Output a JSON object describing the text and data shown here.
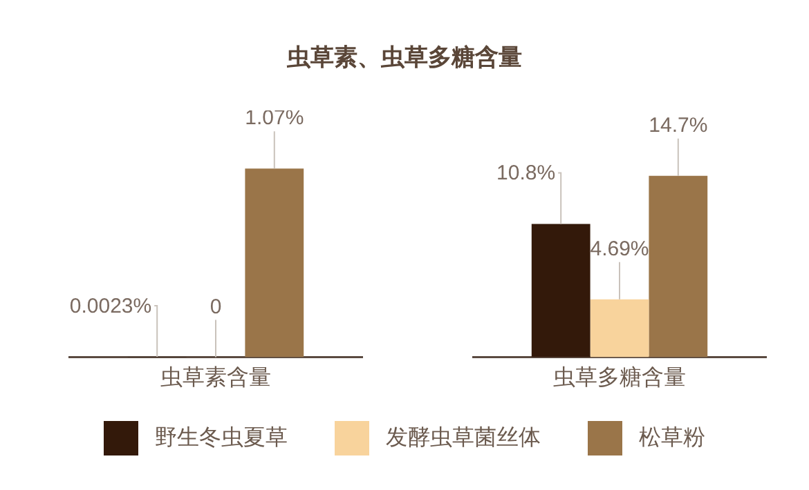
{
  "chart_data": [
    {
      "type": "bar",
      "title": "虫草素、虫草多糖含量",
      "categories": [
        "虫草素含量"
      ],
      "legend": "bottom",
      "data_labels": true,
      "series": [
        {
          "name": "野生冬虫夏草",
          "color": "#33190a",
          "values": [
            0.0023
          ],
          "value_labels": [
            "0.0023%"
          ]
        },
        {
          "name": "发酵虫草菌丝体",
          "color": "#f8d39c",
          "values": [
            0
          ],
          "value_labels": [
            "0"
          ]
        },
        {
          "name": "松草粉",
          "color": "#9a7549",
          "values": [
            1.07
          ],
          "value_labels": [
            "1.07%"
          ]
        }
      ]
    },
    {
      "type": "bar",
      "categories": [
        "虫草多糖含量"
      ],
      "data_labels": true,
      "series": [
        {
          "color": "#33190a",
          "values": [
            10.8
          ],
          "value_labels": [
            "10.8%"
          ]
        },
        {
          "color": "#f8d39c",
          "values": [
            4.69
          ],
          "value_labels": [
            "4.69%"
          ]
        },
        {
          "color": "#9a7549",
          "values": [
            14.7
          ],
          "value_labels": [
            "14.7%"
          ]
        }
      ]
    }
  ]
}
